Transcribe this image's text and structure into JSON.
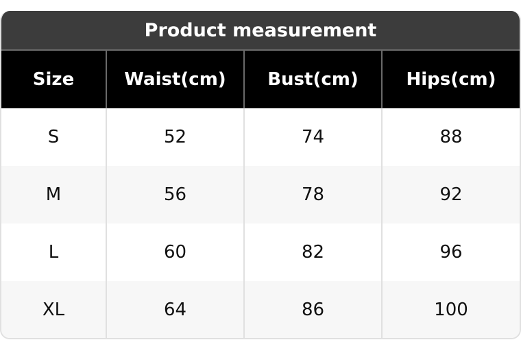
{
  "title": "Product measurement",
  "columns": [
    "Size",
    "Waist(cm)",
    "Bust(cm)",
    "Hips(cm)"
  ],
  "rows": [
    [
      "S",
      "52",
      "74",
      "88"
    ],
    [
      "M",
      "56",
      "78",
      "92"
    ],
    [
      "L",
      "60",
      "82",
      "96"
    ],
    [
      "XL",
      "64",
      "86",
      "100"
    ]
  ],
  "colors": {
    "title_bg": "#3c3c3c",
    "header_bg": "#000000",
    "alt_row_bg": "#f7f7f7"
  }
}
